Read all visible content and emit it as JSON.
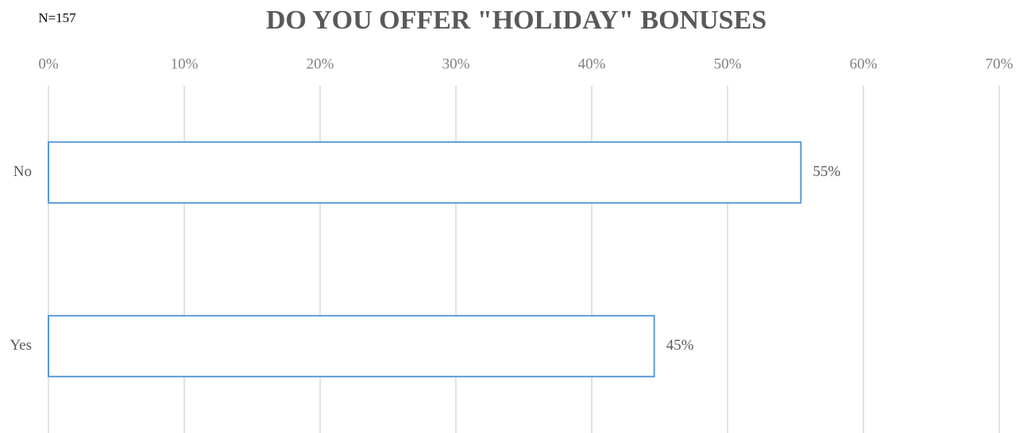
{
  "chart_data": {
    "type": "bar",
    "orientation": "horizontal",
    "title": "DO YOU OFFER \"HOLIDAY\" BONUSES",
    "annotation": "N=157",
    "categories": [
      "No",
      "Yes"
    ],
    "values": [
      55.4,
      44.6
    ],
    "value_labels": [
      "55%",
      "45%"
    ],
    "color": "#5b9bd5",
    "xlim": [
      0,
      70
    ],
    "xticks": [
      {
        "value": 0,
        "label": "0%"
      },
      {
        "value": 10,
        "label": "10%"
      },
      {
        "value": 20,
        "label": "20%"
      },
      {
        "value": 30,
        "label": "30%"
      },
      {
        "value": 40,
        "label": "40%"
      },
      {
        "value": 50,
        "label": "50%"
      },
      {
        "value": 60,
        "label": "60%"
      },
      {
        "value": 70,
        "label": "70%"
      }
    ],
    "grid": true
  }
}
